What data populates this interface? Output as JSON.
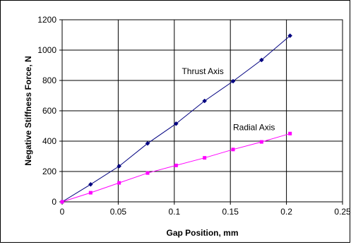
{
  "chart_data": {
    "type": "line",
    "xlabel": "Gap Position, mm",
    "ylabel": "Negative Stiffness Force, N",
    "xlim": [
      0,
      0.25
    ],
    "ylim": [
      0,
      1200
    ],
    "xticks": [
      0,
      0.05,
      0.1,
      0.15,
      0.2,
      0.25
    ],
    "yticks": [
      0,
      200,
      400,
      600,
      800,
      1000,
      1200
    ],
    "x_tick_labels": [
      "0",
      "0.05",
      "0.1",
      "0.15",
      "0.2",
      "0.25"
    ],
    "y_tick_labels": [
      "0",
      "200",
      "400",
      "600",
      "800",
      "1000",
      "1200"
    ],
    "grid": true,
    "legend": "none",
    "series": [
      {
        "label": "Thrust Axis",
        "color": "#000080",
        "marker": "diamond",
        "x": [
          0,
          0.0254,
          0.0508,
          0.0762,
          0.1016,
          0.127,
          0.1524,
          0.1778,
          0.2032
        ],
        "y": [
          0,
          115,
          235,
          385,
          515,
          665,
          795,
          935,
          1095
        ]
      },
      {
        "label": "Radial Axis",
        "color": "#ff00ff",
        "marker": "square",
        "x": [
          0,
          0.0254,
          0.0508,
          0.0762,
          0.1016,
          0.127,
          0.1524,
          0.1778,
          0.2032
        ],
        "y": [
          0,
          60,
          125,
          190,
          240,
          290,
          345,
          395,
          450
        ]
      }
    ]
  }
}
